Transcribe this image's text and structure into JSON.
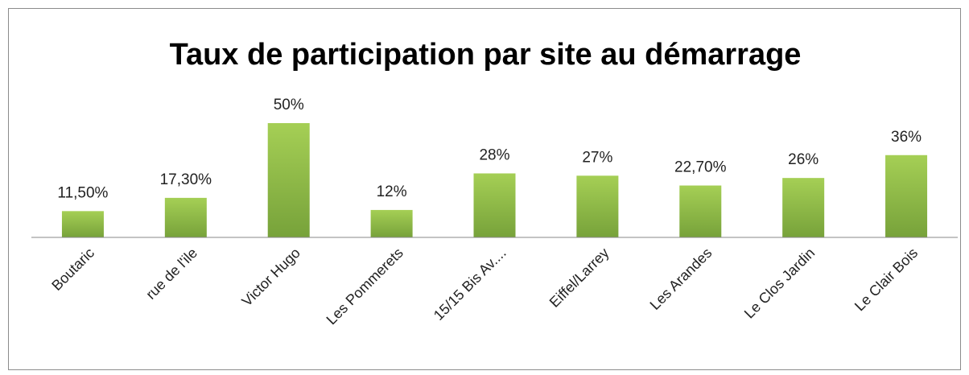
{
  "chart_data": {
    "type": "bar",
    "title": "Taux de participation par site au démarrage",
    "categories": [
      "Boutaric",
      "rue de l'ile",
      "Victor Hugo",
      "Les Pommerets",
      "15/15 Bis Av....",
      "Eiffel/Larrey",
      "Les Arandes",
      "Le Clos Jardin",
      "Le Clair Bois"
    ],
    "values": [
      11.5,
      17.3,
      50,
      12,
      28,
      27,
      22.7,
      26,
      36
    ],
    "value_labels": [
      "11,50%",
      "17,30%",
      "50%",
      "12%",
      "28%",
      "27%",
      "22,70%",
      "26%",
      "36%"
    ],
    "color": "#8db843",
    "ylim": [
      0,
      50
    ]
  }
}
